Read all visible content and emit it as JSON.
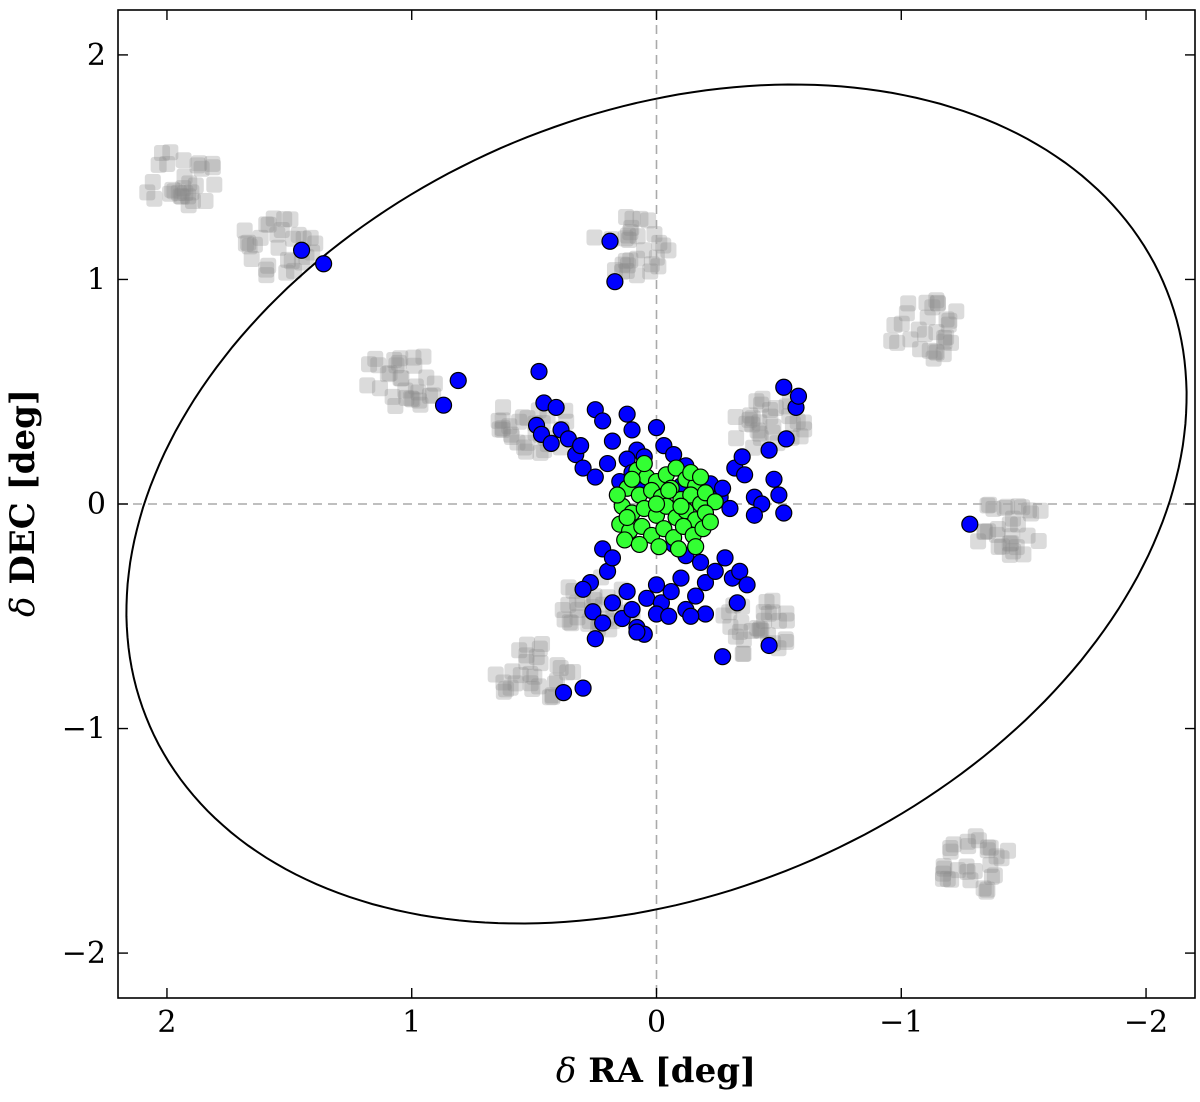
{
  "chart_data": {
    "type": "scatter",
    "title": "",
    "xlabel": {
      "symbol": "δ",
      "text": "RA [deg]"
    },
    "ylabel": {
      "symbol": "δ",
      "text": "DEC [deg]"
    },
    "xlim": [
      2.2,
      -2.2
    ],
    "ylim": [
      -2.2,
      2.2
    ],
    "x_inverted": true,
    "grid": false,
    "legend": "none",
    "xticks": [
      2,
      1,
      0,
      -1,
      -2
    ],
    "yticks": [
      2,
      1,
      0,
      -1,
      -2
    ],
    "xtick_labels": [
      "2",
      "1",
      "0",
      "−1",
      "−2"
    ],
    "ytick_labels": [
      "2",
      "1",
      "0",
      "−1",
      "−2"
    ],
    "reference_lines": [
      {
        "orientation": "vertical",
        "value": 0,
        "style": "dashed",
        "color": "#aaaaaa"
      },
      {
        "orientation": "horizontal",
        "value": 0,
        "style": "dashed",
        "color": "#aaaaaa"
      }
    ],
    "ellipse": {
      "center": [
        0,
        0
      ],
      "semi_major_deg": 2.3,
      "semi_minor_deg": 1.7,
      "orientation_deg": 60,
      "color": "#000000"
    },
    "fields": {
      "color": "#888888",
      "opacity": 0.3,
      "marker": "square",
      "centers": [
        [
          1.95,
          1.45
        ],
        [
          1.55,
          1.15
        ],
        [
          1.05,
          0.55
        ],
        [
          -1.1,
          0.78
        ],
        [
          0.1,
          1.15
        ],
        [
          0.5,
          0.35
        ],
        [
          -0.45,
          0.35
        ],
        [
          -1.45,
          -0.1
        ],
        [
          -0.4,
          -0.55
        ],
        [
          0.5,
          -0.75
        ],
        [
          -1.3,
          -1.6
        ],
        [
          0.25,
          -0.45
        ]
      ]
    },
    "series": [
      {
        "color": "#0000ff",
        "marker": "circle",
        "points": [
          [
            1.45,
            1.13
          ],
          [
            1.36,
            1.07
          ],
          [
            0.19,
            1.17
          ],
          [
            0.17,
            0.99
          ],
          [
            0.81,
            0.55
          ],
          [
            0.87,
            0.44
          ],
          [
            -1.28,
            -0.09
          ],
          [
            0.48,
            0.59
          ],
          [
            0.46,
            0.45
          ],
          [
            0.41,
            0.43
          ],
          [
            0.49,
            0.35
          ],
          [
            0.47,
            0.31
          ],
          [
            0.43,
            0.27
          ],
          [
            0.39,
            0.33
          ],
          [
            0.36,
            0.29
          ],
          [
            0.33,
            0.22
          ],
          [
            0.31,
            0.26
          ],
          [
            0.25,
            0.42
          ],
          [
            0.22,
            0.37
          ],
          [
            0.18,
            0.28
          ],
          [
            0.12,
            0.4
          ],
          [
            0.1,
            0.33
          ],
          [
            0.08,
            0.24
          ],
          [
            0.05,
            0.21
          ],
          [
            0.0,
            0.34
          ],
          [
            -0.03,
            0.26
          ],
          [
            -0.07,
            0.22
          ],
          [
            -0.12,
            0.17
          ],
          [
            0.3,
            0.16
          ],
          [
            0.25,
            0.12
          ],
          [
            0.2,
            0.18
          ],
          [
            0.15,
            0.1
          ],
          [
            0.12,
            0.2
          ],
          [
            0.1,
            0.14
          ],
          [
            0.06,
            0.06
          ],
          [
            -0.1,
            0.08
          ],
          [
            -0.15,
            0.05
          ],
          [
            -0.19,
            0.01
          ],
          [
            -0.22,
            0.09
          ],
          [
            -0.26,
            0.03
          ],
          [
            -0.3,
            -0.02
          ],
          [
            -0.32,
            0.16
          ],
          [
            -0.35,
            0.21
          ],
          [
            -0.4,
            0.03
          ],
          [
            -0.43,
            0.0
          ],
          [
            -0.48,
            0.11
          ],
          [
            -0.5,
            0.04
          ],
          [
            -0.52,
            -0.04
          ],
          [
            -0.53,
            0.29
          ],
          [
            -0.57,
            0.43
          ],
          [
            -0.52,
            0.52
          ],
          [
            -0.58,
            0.48
          ],
          [
            -0.46,
            0.24
          ],
          [
            -0.36,
            0.13
          ],
          [
            -0.4,
            -0.05
          ],
          [
            -0.27,
            0.07
          ],
          [
            0.27,
            -0.35
          ],
          [
            0.3,
            -0.38
          ],
          [
            0.26,
            -0.48
          ],
          [
            0.22,
            -0.53
          ],
          [
            0.18,
            -0.44
          ],
          [
            0.14,
            -0.51
          ],
          [
            0.12,
            -0.39
          ],
          [
            0.1,
            -0.47
          ],
          [
            0.08,
            -0.55
          ],
          [
            0.04,
            -0.42
          ],
          [
            0.0,
            -0.36
          ],
          [
            -0.02,
            -0.44
          ],
          [
            -0.06,
            -0.39
          ],
          [
            -0.1,
            -0.33
          ],
          [
            -0.12,
            -0.47
          ],
          [
            -0.16,
            -0.41
          ],
          [
            -0.2,
            -0.35
          ],
          [
            -0.24,
            -0.3
          ],
          [
            -0.28,
            -0.24
          ],
          [
            -0.31,
            -0.33
          ],
          [
            -0.34,
            -0.3
          ],
          [
            -0.37,
            -0.36
          ],
          [
            -0.33,
            -0.44
          ],
          [
            -0.2,
            -0.49
          ],
          [
            -0.27,
            -0.68
          ],
          [
            -0.46,
            -0.63
          ],
          [
            0.38,
            -0.84
          ],
          [
            0.3,
            -0.82
          ],
          [
            0.05,
            -0.58
          ],
          [
            0.08,
            -0.57
          ],
          [
            0.0,
            -0.49
          ],
          [
            -0.05,
            -0.5
          ],
          [
            -0.14,
            -0.5
          ],
          [
            0.2,
            -0.3
          ],
          [
            0.25,
            -0.6
          ],
          [
            0.22,
            -0.2
          ],
          [
            0.18,
            -0.24
          ],
          [
            -0.07,
            -0.18
          ],
          [
            -0.12,
            -0.23
          ],
          [
            -0.18,
            -0.26
          ]
        ]
      },
      {
        "color": "#33ff33",
        "marker": "circle",
        "points": [
          [
            0.08,
            0.15
          ],
          [
            0.04,
            0.12
          ],
          [
            0.0,
            0.1
          ],
          [
            -0.04,
            0.13
          ],
          [
            -0.08,
            0.16
          ],
          [
            -0.12,
            0.11
          ],
          [
            -0.16,
            0.08
          ],
          [
            0.12,
            0.07
          ],
          [
            0.07,
            0.04
          ],
          [
            0.02,
            0.06
          ],
          [
            -0.02,
            0.03
          ],
          [
            -0.06,
            0.07
          ],
          [
            -0.1,
            0.02
          ],
          [
            -0.14,
            0.04
          ],
          [
            -0.18,
            0.0
          ],
          [
            -0.2,
            0.05
          ],
          [
            -0.24,
            0.01
          ],
          [
            0.14,
            -0.01
          ],
          [
            0.1,
            -0.04
          ],
          [
            0.05,
            -0.02
          ],
          [
            0.0,
            -0.05
          ],
          [
            -0.04,
            -0.01
          ],
          [
            -0.08,
            -0.06
          ],
          [
            -0.12,
            -0.03
          ],
          [
            -0.16,
            -0.07
          ],
          [
            -0.2,
            -0.04
          ],
          [
            0.15,
            -0.09
          ],
          [
            0.11,
            -0.12
          ],
          [
            0.06,
            -0.1
          ],
          [
            0.02,
            -0.14
          ],
          [
            -0.03,
            -0.11
          ],
          [
            -0.07,
            -0.15
          ],
          [
            -0.11,
            -0.1
          ],
          [
            -0.15,
            -0.14
          ],
          [
            -0.19,
            -0.11
          ],
          [
            0.13,
            -0.16
          ],
          [
            0.07,
            -0.18
          ],
          [
            -0.01,
            -0.19
          ],
          [
            -0.09,
            -0.2
          ],
          [
            -0.16,
            -0.19
          ],
          [
            0.1,
            0.11
          ],
          [
            -0.14,
            0.14
          ],
          [
            0.05,
            0.18
          ],
          [
            -0.05,
            0.06
          ],
          [
            -0.1,
            -0.01
          ],
          [
            0.0,
            0.0
          ],
          [
            -0.18,
            0.12
          ],
          [
            0.16,
            0.04
          ],
          [
            0.12,
            -0.06
          ],
          [
            -0.22,
            -0.08
          ]
        ]
      }
    ]
  }
}
